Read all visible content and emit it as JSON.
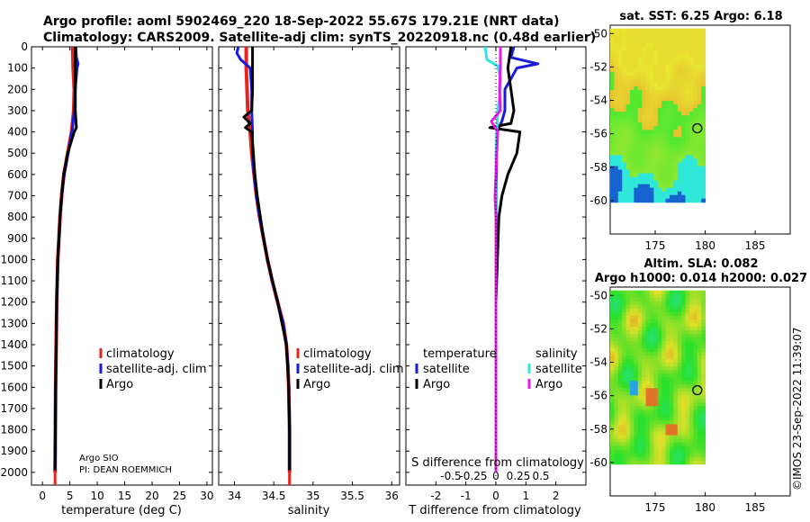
{
  "header": {
    "line1": "Argo profile: aoml 5902469_220 18-Sep-2022 55.67S 179.21E (NRT data)",
    "line2": "Climatology: CARS2009. Satellite-adj clim: synTS_20220918.nc (0.48d earlier)"
  },
  "side_label": "©IMOS 23-Sep-2022 11:39:07",
  "colors": {
    "climatology": "#e8231b",
    "satellite": "#1a1adf",
    "argo": "#000000",
    "sat_salt": "#2ee6e6",
    "argo_salt": "#e61ae6"
  },
  "chart_data": [
    {
      "type": "line",
      "id": "temperature",
      "xlabel": "temperature (deg C)",
      "ylabel": "",
      "xlim": [
        -2,
        31
      ],
      "ylim": [
        2060,
        0
      ],
      "xticks": [
        0,
        5,
        10,
        15,
        20,
        25,
        30
      ],
      "yticks": [
        0,
        100,
        200,
        300,
        400,
        500,
        600,
        700,
        800,
        900,
        1000,
        1100,
        1200,
        1300,
        1400,
        1500,
        1600,
        1700,
        1800,
        1900,
        2000
      ],
      "legend": [
        "climatology",
        "satellite-adj. clim",
        "Argo"
      ],
      "credit": [
        "Argo SIO",
        "PI: DEAN ROEMMICH"
      ],
      "series": [
        {
          "name": "climatology",
          "depth": [
            0,
            100,
            200,
            300,
            400,
            500,
            600,
            700,
            800,
            900,
            1000,
            1200,
            1400,
            1600,
            1800,
            2000
          ],
          "values": [
            5.5,
            5.6,
            5.8,
            5.7,
            5.3,
            4.6,
            3.9,
            3.5,
            3.2,
            3.0,
            2.8,
            2.6,
            2.5,
            2.4,
            2.35,
            2.3
          ]
        },
        {
          "name": "satellite-adj. clim",
          "depth": [
            0,
            50,
            80,
            100,
            200,
            300,
            380,
            500,
            600,
            700,
            800,
            900,
            1000,
            1200,
            1400,
            1600,
            1800,
            2000
          ],
          "values": [
            6.1,
            6.2,
            6.5,
            6.3,
            6.0,
            5.8,
            5.5,
            4.7,
            4.0,
            3.5,
            3.2,
            3.0,
            2.8,
            2.6,
            2.5,
            2.4,
            2.35,
            2.3
          ]
        },
        {
          "name": "Argo",
          "depth": [
            0,
            100,
            200,
            300,
            380,
            400,
            500,
            600,
            700,
            800,
            900,
            1000,
            1200,
            1400,
            1600,
            1800,
            2000
          ],
          "values": [
            6.0,
            6.0,
            6.0,
            6.0,
            6.2,
            5.8,
            4.6,
            3.9,
            3.5,
            3.2,
            3.0,
            2.8,
            2.6,
            2.5,
            2.4,
            2.35,
            2.3
          ]
        }
      ]
    },
    {
      "type": "line",
      "id": "salinity",
      "xlabel": "salinity",
      "xlim": [
        33.8,
        36.1
      ],
      "ylim": [
        2060,
        0
      ],
      "xticks": [
        34,
        34.5,
        35,
        35.5,
        36
      ],
      "xticklabels": [
        "34",
        "34.5",
        "35",
        "35.5",
        "36"
      ],
      "legend": [
        "climatology",
        "satellite-adj. clim",
        "Argo"
      ],
      "series": [
        {
          "name": "climatology",
          "depth": [
            0,
            100,
            200,
            300,
            400,
            500,
            600,
            700,
            800,
            900,
            1000,
            1100,
            1200,
            1300,
            1400,
            1500,
            1600,
            1800,
            2000
          ],
          "values": [
            34.15,
            34.15,
            34.16,
            34.17,
            34.2,
            34.22,
            34.25,
            34.28,
            34.32,
            34.37,
            34.42,
            34.48,
            34.55,
            34.62,
            34.66,
            34.68,
            34.69,
            34.7,
            34.7
          ]
        },
        {
          "name": "satellite-adj. clim",
          "depth": [
            0,
            30,
            60,
            100,
            200,
            300,
            400,
            500,
            600,
            700,
            800,
            900,
            1000,
            1100,
            1200,
            1300,
            1400,
            1500,
            1600,
            1800,
            2000
          ],
          "values": [
            34.05,
            34.03,
            34.08,
            34.2,
            34.22,
            34.22,
            34.23,
            34.23,
            34.25,
            34.28,
            34.32,
            34.37,
            34.42,
            34.48,
            34.55,
            34.62,
            34.66,
            34.68,
            34.69,
            34.7,
            34.7
          ]
        },
        {
          "name": "Argo",
          "depth": [
            0,
            100,
            200,
            300,
            330,
            360,
            380,
            400,
            500,
            600,
            700,
            800,
            900,
            1000,
            1200,
            1400,
            1600,
            1800,
            2000
          ],
          "values": [
            34.23,
            34.23,
            34.23,
            34.22,
            34.12,
            34.2,
            34.14,
            34.22,
            34.24,
            34.26,
            34.29,
            34.33,
            34.37,
            34.42,
            34.55,
            34.66,
            34.69,
            34.7,
            34.7
          ]
        }
      ]
    },
    {
      "type": "line",
      "id": "difference",
      "xlabel": "T difference from climatology",
      "top_label": "S difference from climatology",
      "xlim": [
        -3,
        3
      ],
      "ylim": [
        2060,
        0
      ],
      "xticks": [
        -2,
        -1,
        0,
        1,
        2
      ],
      "sticks": [
        -0.5,
        -0.25,
        0,
        0.25,
        0.5
      ],
      "sticklabels": [
        "-0.5",
        "-0.25",
        "0",
        "0.25",
        "0.5"
      ],
      "legend_t_title": "temperature",
      "legend_s_title": "salinity",
      "legend_t": [
        "satellite",
        "Argo"
      ],
      "legend_s": [
        "satellite",
        "Argo"
      ],
      "series": [
        {
          "name": "T satellite",
          "depth": [
            0,
            50,
            80,
            100,
            150,
            200,
            250,
            300,
            350,
            380,
            400,
            500,
            700,
            1000,
            2000
          ],
          "values": [
            0.6,
            0.5,
            1.4,
            0.7,
            0.5,
            0.3,
            0.3,
            0.3,
            0.2,
            0.1,
            0.05,
            0.02,
            0.01,
            0.0,
            0.0
          ]
        },
        {
          "name": "T Argo",
          "depth": [
            0,
            100,
            200,
            300,
            360,
            380,
            400,
            500,
            600,
            700,
            800,
            1000,
            1200,
            1400,
            1600,
            2000
          ],
          "values": [
            0.5,
            0.4,
            0.5,
            0.6,
            0.5,
            -0.2,
            0.8,
            0.7,
            0.4,
            0.2,
            0.1,
            0.05,
            0.0,
            0.0,
            0.0,
            0.0
          ]
        },
        {
          "name": "S satellite",
          "depth": [
            0,
            60,
            90,
            150,
            200,
            300,
            400,
            500,
            1000,
            2000
          ],
          "values": [
            -0.12,
            -0.1,
            0.02,
            0.05,
            0.05,
            0.02,
            0.01,
            0.0,
            0.0,
            0.0
          ]
        },
        {
          "name": "S Argo",
          "depth": [
            0,
            100,
            200,
            300,
            350,
            400,
            500,
            600,
            700,
            800,
            1000,
            1500,
            2000
          ],
          "values": [
            0.05,
            0.05,
            0.04,
            0.05,
            -0.05,
            0.02,
            0.01,
            0.0,
            -0.01,
            0.0,
            0.0,
            0.0,
            0.0
          ]
        }
      ]
    },
    {
      "type": "heatmap",
      "id": "sst_map",
      "title": "sat. SST: 6.25 Argo: 6.18",
      "xticks": [
        175,
        180,
        185
      ],
      "yticks": [
        -50,
        -52,
        -54,
        -56,
        -58,
        -60
      ],
      "xlim": [
        170.5,
        188.5
      ],
      "ylim": [
        -49.5,
        -62
      ],
      "marker": {
        "lon": 179.21,
        "lat": -55.67
      }
    },
    {
      "type": "heatmap",
      "id": "sla_map",
      "title": "Altim. SLA: 0.082",
      "subtitle": "Argo h1000: 0.014 h2000: 0.027",
      "xticks": [
        175,
        180,
        185
      ],
      "yticks": [
        -50,
        -52,
        -54,
        -56,
        -58,
        -60
      ],
      "xlim": [
        170.5,
        188.5
      ],
      "ylim": [
        -49.5,
        -62
      ],
      "marker": {
        "lon": 179.21,
        "lat": -55.67
      }
    }
  ]
}
